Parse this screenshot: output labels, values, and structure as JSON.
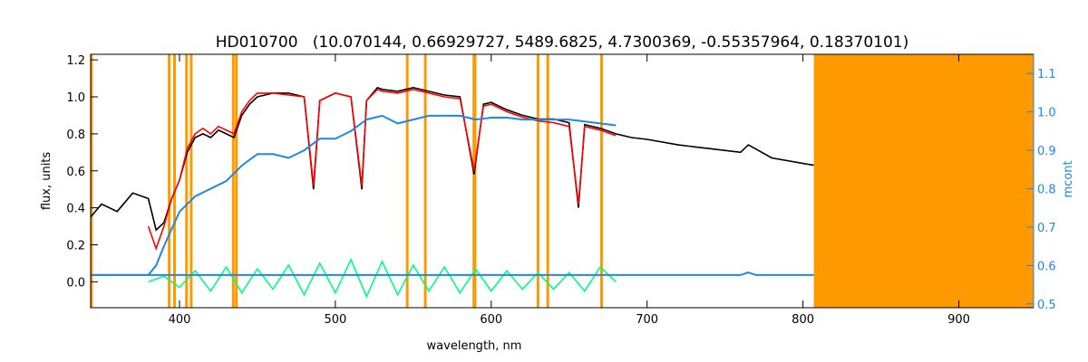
{
  "chart_data": {
    "type": "line",
    "title": "HD010700   (10.070144, 0.66929727, 5489.6825, 4.7300369, -0.55357964, 0.18370101)",
    "xlabel": "wavelength, nm",
    "ylabel": "flux, units",
    "y2label": "mcont",
    "xlim": [
      343,
      948
    ],
    "ylim": [
      -0.14,
      1.23
    ],
    "y2lim": [
      0.49,
      1.15
    ],
    "xticks": [
      400,
      500,
      600,
      700,
      800,
      900
    ],
    "yticks": [
      0.0,
      0.2,
      0.4,
      0.6,
      0.8,
      1.0,
      1.2
    ],
    "y2ticks": [
      0.5,
      0.6,
      0.7,
      0.8,
      0.9,
      1.0,
      1.1
    ],
    "grid": false,
    "masked_region": {
      "x_start": 807,
      "x_end": 948,
      "color": "#ff9900"
    },
    "vertical_lines": [
      343.5,
      393.4,
      396.8,
      404.5,
      407.5,
      434.5,
      436.5,
      546.1,
      557.7,
      588.9,
      589.6,
      630.0,
      636.3,
      670.8
    ],
    "series": [
      {
        "role": "observed",
        "color": "#000000",
        "x": [
          343,
          350,
          360,
          370,
          380,
          385,
          390,
          395,
          400,
          405,
          410,
          415,
          420,
          425,
          430,
          435,
          440,
          445,
          450,
          460,
          470,
          480,
          486,
          490,
          500,
          510,
          517,
          520,
          527,
          530,
          540,
          550,
          560,
          570,
          580,
          589,
          595,
          600,
          610,
          620,
          630,
          640,
          650,
          656,
          660,
          670,
          680,
          690,
          700,
          720,
          740,
          760,
          765,
          780,
          800,
          807
        ],
        "y": [
          0.35,
          0.42,
          0.38,
          0.48,
          0.45,
          0.28,
          0.32,
          0.45,
          0.55,
          0.7,
          0.78,
          0.8,
          0.78,
          0.82,
          0.8,
          0.78,
          0.9,
          0.96,
          1.0,
          1.02,
          1.02,
          1.0,
          0.5,
          0.98,
          1.02,
          1.0,
          0.5,
          0.98,
          1.05,
          1.04,
          1.03,
          1.05,
          1.03,
          1.01,
          1.0,
          0.58,
          0.96,
          0.97,
          0.93,
          0.9,
          0.88,
          0.88,
          0.86,
          0.4,
          0.85,
          0.83,
          0.8,
          0.78,
          0.77,
          0.74,
          0.72,
          0.7,
          0.74,
          0.67,
          0.64,
          0.63
        ]
      },
      {
        "role": "model",
        "color": "#ff0000",
        "x": [
          380,
          385,
          390,
          395,
          400,
          405,
          410,
          415,
          420,
          425,
          430,
          435,
          440,
          445,
          450,
          460,
          470,
          480,
          486,
          490,
          500,
          510,
          517,
          520,
          527,
          530,
          540,
          550,
          560,
          570,
          580,
          589,
          595,
          600,
          610,
          620,
          630,
          640,
          650,
          656,
          660,
          670,
          680
        ],
        "y": [
          0.3,
          0.18,
          0.3,
          0.45,
          0.55,
          0.72,
          0.8,
          0.83,
          0.8,
          0.84,
          0.82,
          0.8,
          0.92,
          0.98,
          1.02,
          1.02,
          1.01,
          1.0,
          0.52,
          0.98,
          1.02,
          1.0,
          0.52,
          0.98,
          1.04,
          1.03,
          1.02,
          1.04,
          1.02,
          1.0,
          0.99,
          0.6,
          0.95,
          0.96,
          0.92,
          0.89,
          0.87,
          0.86,
          0.84,
          0.42,
          0.84,
          0.82,
          0.79
        ]
      },
      {
        "role": "residual",
        "color": "#00ff7f",
        "x": [
          380,
          390,
          400,
          410,
          420,
          430,
          440,
          450,
          460,
          470,
          480,
          490,
          500,
          510,
          520,
          530,
          540,
          550,
          560,
          570,
          580,
          590,
          600,
          610,
          620,
          630,
          640,
          650,
          660,
          670,
          680
        ],
        "y": [
          0.0,
          0.03,
          -0.03,
          0.06,
          -0.05,
          0.08,
          -0.06,
          0.07,
          -0.04,
          0.09,
          -0.07,
          0.1,
          -0.06,
          0.12,
          -0.08,
          0.11,
          -0.07,
          0.09,
          -0.05,
          0.08,
          -0.06,
          0.07,
          -0.05,
          0.06,
          -0.04,
          0.05,
          -0.04,
          0.05,
          -0.05,
          0.08,
          0.0
        ]
      },
      {
        "role": "mcont",
        "axis": "right",
        "color": "#1e88e5",
        "x": [
          343,
          370,
          380,
          385,
          390,
          400,
          410,
          420,
          430,
          440,
          450,
          460,
          470,
          480,
          490,
          500,
          510,
          520,
          530,
          540,
          550,
          560,
          570,
          580,
          590,
          600,
          610,
          620,
          630,
          640,
          650,
          660,
          670,
          680
        ],
        "y": [
          0.575,
          0.575,
          0.575,
          0.6,
          0.65,
          0.74,
          0.78,
          0.8,
          0.82,
          0.86,
          0.89,
          0.89,
          0.88,
          0.9,
          0.93,
          0.93,
          0.95,
          0.98,
          0.99,
          0.97,
          0.98,
          0.99,
          0.99,
          0.99,
          0.98,
          0.985,
          0.985,
          0.98,
          0.98,
          0.98,
          0.98,
          0.975,
          0.97,
          0.965
        ]
      },
      {
        "role": "mcont-baseline",
        "axis": "right",
        "color": "#1e88e5",
        "x": [
          343,
          380,
          680,
          760,
          765,
          770,
          807
        ],
        "y": [
          0.575,
          0.575,
          0.575,
          0.575,
          0.582,
          0.575,
          0.575
        ]
      }
    ]
  }
}
